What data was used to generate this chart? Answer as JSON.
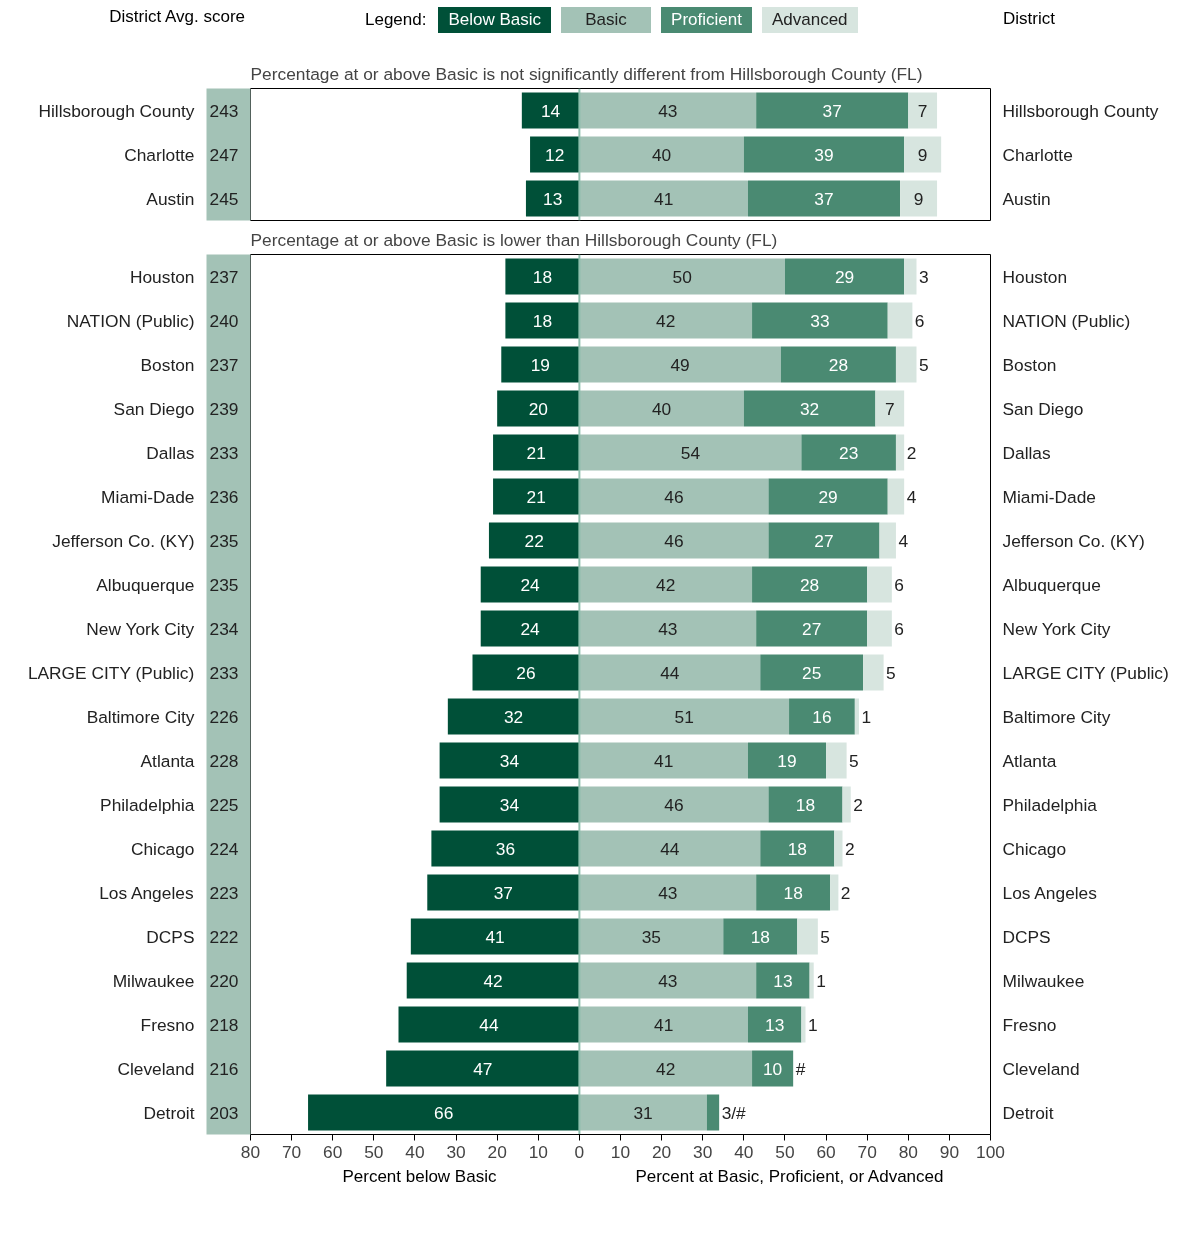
{
  "chart_data": [
    {
      "type": "bar",
      "orientation": "horizontal",
      "title": "Percentage at or above Basic is not significantly different from Hillsborough County (FL)",
      "legend_title": "Legend:",
      "legend": "top",
      "tick_labels": "y",
      "xlim": [
        -80,
        100
      ],
      "categories": [
        "Hillsborough County",
        "Charlotte",
        "Austin"
      ],
      "series": [
        {
          "name": "Below Basic",
          "color": "#005038",
          "base": [
            -14,
            -12,
            -13
          ],
          "values": [
            14,
            12,
            13
          ],
          "value_labels": [
            "14",
            "12",
            "13"
          ]
        },
        {
          "name": "Basic",
          "color": "#a3c2b6",
          "base": [
            0,
            0,
            0
          ],
          "values": [
            43,
            40,
            41
          ],
          "value_labels": [
            "43",
            "40",
            "41"
          ]
        },
        {
          "name": "Proficient",
          "color": "#4a8a72",
          "base": [
            43,
            40,
            41
          ],
          "values": [
            37,
            39,
            37
          ],
          "value_labels": [
            "37",
            "39",
            "37"
          ]
        },
        {
          "name": "Advanced",
          "color": "#d7e5df",
          "base": [
            80,
            79,
            78
          ],
          "values": [
            7,
            9,
            9
          ],
          "value_labels": [
            "7",
            "9",
            "9"
          ]
        }
      ],
      "ref_lines": [
        {
          "axis": "x",
          "value": 0,
          "color": "#8fbfae"
        }
      ],
      "annotations": [
        "District Avg. score",
        "District",
        "243",
        "247",
        "245"
      ]
    },
    {
      "type": "bar",
      "orientation": "horizontal",
      "title": "Percentage at or above Basic is lower than Hillsborough County (FL)",
      "xlabel": "Percent at Basic, Proficient, or Advanced",
      "xlim": [
        -80,
        100
      ],
      "xticks": [
        {
          "value": -80,
          "label": "80"
        },
        {
          "value": -70,
          "label": "70"
        },
        {
          "value": -60,
          "label": "60"
        },
        {
          "value": -50,
          "label": "50"
        },
        {
          "value": -40,
          "label": "40"
        },
        {
          "value": -30,
          "label": "30"
        },
        {
          "value": -20,
          "label": "20"
        },
        {
          "value": -10,
          "label": "10"
        },
        0,
        10,
        20,
        30,
        40,
        50,
        60,
        70,
        80,
        90,
        100
      ],
      "categories": [
        "Houston",
        "NATION (Public)",
        "Boston",
        "San Diego",
        "Dallas",
        "Miami-Dade",
        "Jefferson Co. (KY)",
        "Albuquerque",
        "New York City",
        "LARGE CITY (Public)",
        "Baltimore City",
        "Atlanta",
        "Philadelphia",
        "Chicago",
        "Los Angeles",
        "DCPS",
        "Milwaukee",
        "Fresno",
        "Cleveland",
        "Detroit"
      ],
      "series": [
        {
          "color": "#005038",
          "base": [
            -18,
            -18,
            -19,
            -20,
            -21,
            -21,
            -22,
            -24,
            -24,
            -26,
            -32,
            -34,
            -34,
            -36,
            -37,
            -41,
            -42,
            -44,
            -47,
            -66
          ],
          "values": [
            18,
            18,
            19,
            20,
            21,
            21,
            22,
            24,
            24,
            26,
            32,
            34,
            34,
            36,
            37,
            41,
            42,
            44,
            47,
            66
          ],
          "value_labels": [
            "18",
            "18",
            "19",
            "20",
            "21",
            "21",
            "22",
            "24",
            "24",
            "26",
            "32",
            "34",
            "34",
            "36",
            "37",
            "41",
            "42",
            "44",
            "47",
            "66"
          ]
        },
        {
          "color": "#a3c2b6",
          "base": [
            0,
            0,
            0,
            0,
            0,
            0,
            0,
            0,
            0,
            0,
            0,
            0,
            0,
            0,
            0,
            0,
            0,
            0,
            0,
            0
          ],
          "values": [
            50,
            42,
            49,
            40,
            54,
            46,
            46,
            42,
            43,
            44,
            51,
            41,
            46,
            44,
            43,
            35,
            43,
            41,
            42,
            31
          ],
          "value_labels": [
            "50",
            "42",
            "49",
            "40",
            "54",
            "46",
            "46",
            "42",
            "43",
            "44",
            "51",
            "41",
            "46",
            "44",
            "43",
            "35",
            "43",
            "41",
            "42",
            "31"
          ]
        },
        {
          "color": "#4a8a72",
          "base": [
            50,
            42,
            49,
            40,
            54,
            46,
            46,
            42,
            43,
            44,
            51,
            41,
            46,
            44,
            43,
            35,
            43,
            41,
            42,
            31
          ],
          "values": [
            29,
            33,
            28,
            32,
            23,
            29,
            27,
            28,
            27,
            25,
            16,
            19,
            18,
            18,
            18,
            18,
            13,
            13,
            10,
            3
          ],
          "value_labels": [
            "29",
            "33",
            "28",
            "32",
            "23",
            "29",
            "27",
            "28",
            "27",
            "25",
            "16",
            "19",
            "18",
            "18",
            "18",
            "18",
            "13",
            "13",
            "10",
            "3/#"
          ]
        },
        {
          "color": "#d7e5df",
          "base": [
            79,
            75,
            77,
            72,
            77,
            75,
            73,
            70,
            70,
            69,
            67,
            60,
            64,
            62,
            61,
            53,
            56,
            54,
            null,
            null
          ],
          "values": [
            3,
            6,
            5,
            7,
            2,
            4,
            4,
            6,
            6,
            5,
            1,
            5,
            2,
            2,
            2,
            5,
            1,
            1,
            null,
            null
          ],
          "value_labels": [
            "3",
            "6",
            "5",
            "7",
            "2",
            "4",
            "4",
            "6",
            "6",
            "5",
            "1",
            "5",
            "2",
            "2",
            "2",
            "5",
            "1",
            "1",
            "#",
            null
          ]
        }
      ],
      "ref_lines": [
        {
          "axis": "x",
          "value": 0,
          "color": "#8fbfae"
        }
      ],
      "annotations": [
        "Percent below Basic",
        "237",
        "240",
        "237",
        "239",
        "233",
        "236",
        "235",
        "235",
        "234",
        "233",
        "226",
        "228",
        "225",
        "224",
        "223",
        "222",
        "220",
        "218",
        "216",
        "203"
      ]
    }
  ]
}
